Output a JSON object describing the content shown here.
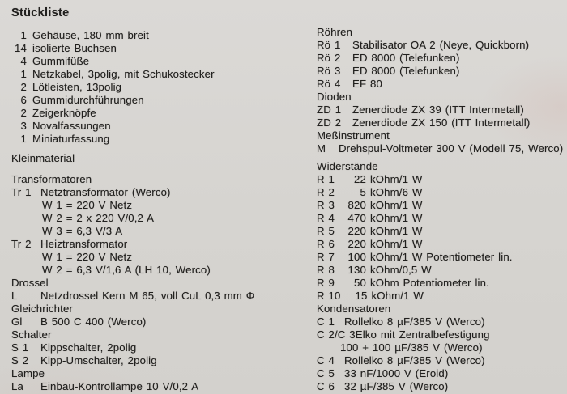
{
  "title": "Stückliste",
  "colors": {
    "paper": "#d6d4d0",
    "ink": "#21201e"
  },
  "left": {
    "parts": [
      {
        "qty": "1",
        "name": "Gehäuse, 180 mm breit"
      },
      {
        "qty": "14",
        "name": "isolierte Buchsen"
      },
      {
        "qty": "4",
        "name": "Gummifüße"
      },
      {
        "qty": "1",
        "name": "Netzkabel, 3polig, mit Schukostecker"
      },
      {
        "qty": "2",
        "name": "Lötleisten, 13polig"
      },
      {
        "qty": "6",
        "name": "Gummidurchführungen"
      },
      {
        "qty": "2",
        "name": "Zeigerknöpfe"
      },
      {
        "qty": "3",
        "name": "Novalfassungen"
      },
      {
        "qty": "1",
        "name": "Miniaturfassung"
      }
    ],
    "kleinmaterial": "Kleinmaterial",
    "transformatoren": {
      "heading": "Transformatoren",
      "tr1": {
        "ref": "Tr 1",
        "desc": "Netztransformator (Werco)",
        "w1": "W 1 = 220 V Netz",
        "w2": "W 2 = 2 x 220 V/0,2 A",
        "w3": "W 3 = 6,3 V/3 A"
      },
      "tr2": {
        "ref": "Tr 2",
        "desc": "Heiztransformator",
        "w1": "W 1 = 220 V Netz",
        "w2": "W 2 = 6,3 V/1,6 A (LH 10, Werco)"
      }
    },
    "drossel": {
      "heading": "Drossel",
      "ref": "L",
      "desc": "Netzdrossel Kern M 65, voll CuL 0,3 mm Φ"
    },
    "gleichrichter": {
      "heading": "Gleichrichter",
      "ref": "Gl",
      "desc": "B 500 C 400 (Werco)"
    },
    "schalter": {
      "heading": "Schalter",
      "items": [
        {
          "ref": "S 1",
          "desc": "Kippschalter, 2polig"
        },
        {
          "ref": "S 2",
          "desc": "Kipp-Umschalter, 2polig"
        }
      ]
    },
    "lampe": {
      "heading": "Lampe",
      "ref": "La",
      "desc": "Einbau-Kontrollampe 10 V/0,2 A"
    }
  },
  "right": {
    "roehren": {
      "heading": "Röhren",
      "items": [
        {
          "ref": "Rö 1",
          "desc": "Stabilisator OA 2 (Neye, Quickborn)"
        },
        {
          "ref": "Rö 2",
          "desc": "ED 8000  (Telefunken)"
        },
        {
          "ref": "Rö 3",
          "desc": "ED 8000  (Telefunken)"
        },
        {
          "ref": "Rö 4",
          "desc": "EF 80"
        }
      ]
    },
    "dioden": {
      "heading": "Dioden",
      "items": [
        {
          "ref": "ZD 1",
          "desc": "Zenerdiode ZX 39 (ITT Intermetall)"
        },
        {
          "ref": "ZD 2",
          "desc": "Zenerdiode ZX 150 (ITT Intermetall)"
        }
      ]
    },
    "messinstrument": {
      "heading": "Meßinstrument",
      "ref": "M",
      "desc": "Drehspul-Voltmeter 300 V (Modell 75, Werco)"
    },
    "widerstaende": {
      "heading": "Widerstände",
      "items": [
        {
          "ref": "R 1",
          "value": "22",
          "desc": "kOhm/1 W"
        },
        {
          "ref": "R 2",
          "value": "5",
          "desc": "kOhm/6 W"
        },
        {
          "ref": "R 3",
          "value": "820",
          "desc": "kOhm/1 W"
        },
        {
          "ref": "R 4",
          "value": "470",
          "desc": "kOhm/1 W"
        },
        {
          "ref": "R 5",
          "value": "220",
          "desc": "kOhm/1 W"
        },
        {
          "ref": "R 6",
          "value": "220",
          "desc": "kOhm/1 W"
        },
        {
          "ref": "R 7",
          "value": "100",
          "desc": "kOhm/1 W Potentiometer lin."
        },
        {
          "ref": "R 8",
          "value": "130",
          "desc": "kOhm/0,5 W"
        },
        {
          "ref": "R 9",
          "value": "50",
          "desc": "kOhm Potentiometer lin."
        },
        {
          "ref": "R 10",
          "value": "15",
          "desc": "kOhm/1 W"
        }
      ]
    },
    "kondensatoren": {
      "heading": "Kondensatoren",
      "items": [
        {
          "ref": "C 1",
          "desc": "Rollelko 8 µF/385 V (Werco)"
        },
        {
          "ref": "C 2/C 3",
          "desc": "Elko mit Zentralbefestigung",
          "desc2": "100 + 100 µF/385 V (Werco)"
        },
        {
          "ref": "C 4",
          "desc": "Rollelko 8 µF/385 V (Werco)"
        },
        {
          "ref": "C 5",
          "desc": "33 nF/1000 V (Eroid)"
        },
        {
          "ref": "C 6",
          "desc": "32 µF/385 V (Werco)"
        }
      ]
    }
  }
}
